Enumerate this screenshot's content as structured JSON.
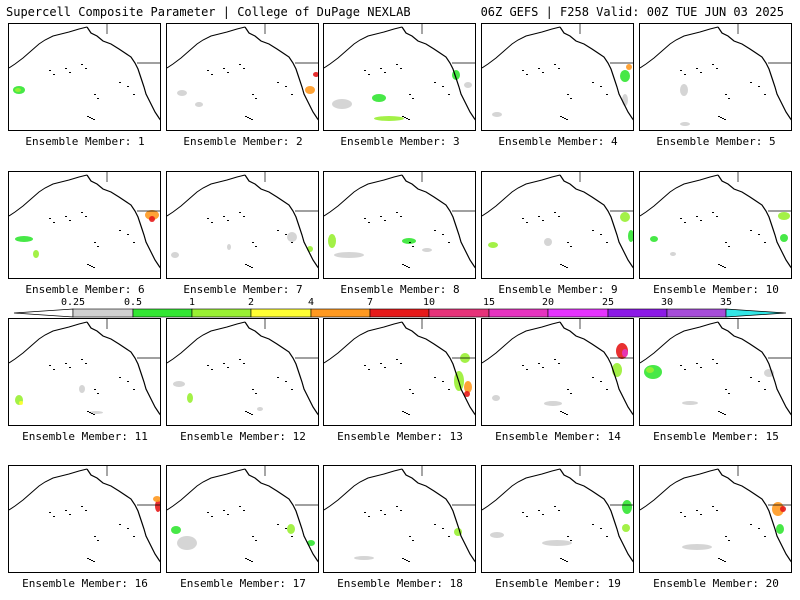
{
  "header": {
    "title": "Supercell Composite Parameter | College of DuPage NEXLAB",
    "run_info": "06Z GEFS | F258 Valid: 00Z TUE JUN 03 2025"
  },
  "colorbar": {
    "ticks": [
      "0.25",
      "0.5",
      "1",
      "2",
      "4",
      "7",
      "10",
      "15",
      "20",
      "25",
      "30",
      "35"
    ],
    "colors": [
      "#d0d0d0",
      "#33e633",
      "#99f033",
      "#ffff33",
      "#ff9920",
      "#e61a1a",
      "#e6337a",
      "#e633c0",
      "#e633ff",
      "#8c1ae6",
      "#a64dd9",
      "#33e6e6"
    ]
  },
  "members": [
    {
      "label": "Ensemble Member: 1"
    },
    {
      "label": "Ensemble Member: 2"
    },
    {
      "label": "Ensemble Member: 3"
    },
    {
      "label": "Ensemble Member: 4"
    },
    {
      "label": "Ensemble Member: 5"
    },
    {
      "label": "Ensemble Member: 6"
    },
    {
      "label": "Ensemble Member: 7"
    },
    {
      "label": "Ensemble Member: 8"
    },
    {
      "label": "Ensemble Member: 9"
    },
    {
      "label": "Ensemble Member: 10"
    },
    {
      "label": "Ensemble Member: 11"
    },
    {
      "label": "Ensemble Member: 12"
    },
    {
      "label": "Ensemble Member: 13"
    },
    {
      "label": "Ensemble Member: 14"
    },
    {
      "label": "Ensemble Member: 15"
    },
    {
      "label": "Ensemble Member: 16"
    },
    {
      "label": "Ensemble Member: 17"
    },
    {
      "label": "Ensemble Member: 18"
    },
    {
      "label": "Ensemble Member: 19"
    },
    {
      "label": "Ensemble Member: 20"
    }
  ]
}
